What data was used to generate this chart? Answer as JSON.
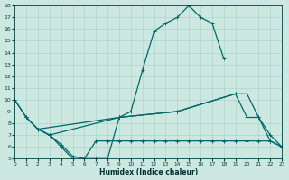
{
  "xlabel": "Humidex (Indice chaleur)",
  "xlim": [
    0,
    23
  ],
  "ylim": [
    5,
    18
  ],
  "yticks": [
    5,
    6,
    7,
    8,
    9,
    10,
    11,
    12,
    13,
    14,
    15,
    16,
    17,
    18
  ],
  "xticks": [
    0,
    1,
    2,
    3,
    4,
    5,
    6,
    7,
    8,
    9,
    10,
    11,
    12,
    13,
    14,
    15,
    16,
    17,
    18,
    19,
    20,
    21,
    22,
    23
  ],
  "bg_color": "#cce8e0",
  "line_color": "#006868",
  "line1_x": [
    0,
    1,
    2,
    3,
    4,
    5,
    6,
    7,
    8,
    9,
    10,
    11,
    12,
    13,
    14,
    15,
    16,
    17,
    18
  ],
  "line1_y": [
    10,
    8.5,
    7.5,
    7.0,
    6.0,
    5.0,
    5.0,
    5.0,
    5.0,
    8.5,
    9.0,
    12.5,
    15.8,
    16.5,
    17.0,
    18.0,
    17.0,
    16.5,
    13.5
  ],
  "line2_x": [
    1,
    2,
    3,
    4,
    5,
    6,
    7,
    8,
    9,
    10,
    11,
    12,
    13,
    14,
    15,
    16,
    17,
    18,
    19,
    20,
    21,
    22,
    23
  ],
  "line2_y": [
    8.5,
    7.5,
    7.0,
    6.2,
    5.2,
    5.0,
    6.5,
    6.5,
    6.5,
    6.5,
    6.5,
    6.5,
    6.5,
    6.5,
    6.5,
    6.5,
    6.5,
    6.5,
    6.5,
    6.5,
    6.5,
    6.5,
    6.0
  ],
  "line3_x": [
    0,
    1,
    2,
    9,
    14,
    19,
    20,
    21,
    22,
    23
  ],
  "line3_y": [
    10,
    8.5,
    7.5,
    8.5,
    9.0,
    10.5,
    10.5,
    8.5,
    7.0,
    6.0
  ],
  "line4_x": [
    2,
    3,
    9,
    14,
    19,
    20,
    21,
    22,
    23
  ],
  "line4_y": [
    7.5,
    7.0,
    8.5,
    9.0,
    10.5,
    8.5,
    8.5,
    6.5,
    6.0
  ]
}
